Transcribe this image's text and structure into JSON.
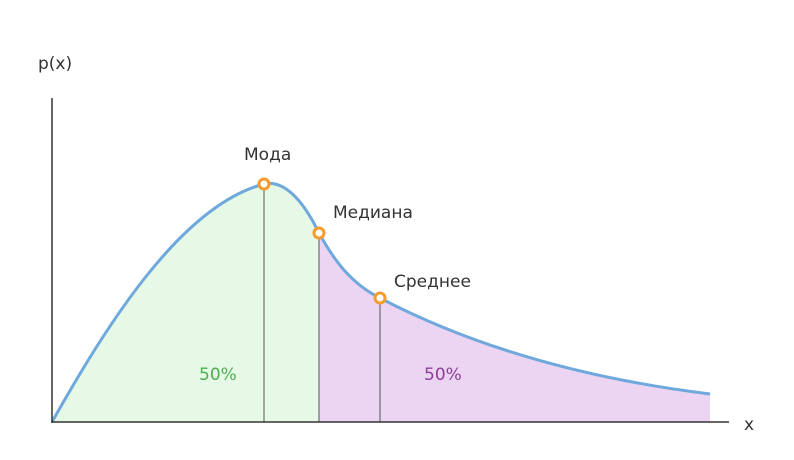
{
  "diagram": {
    "y_axis_label": "p(x)",
    "x_axis_label": "x",
    "points": [
      {
        "id": "mode",
        "label": "Мода"
      },
      {
        "id": "median",
        "label": "Медиана"
      },
      {
        "id": "mean",
        "label": "Среднее"
      }
    ],
    "regions": [
      {
        "id": "left",
        "label": "50%"
      },
      {
        "id": "right",
        "label": "50%"
      }
    ],
    "colors": {
      "curve": "#6fa8dc",
      "left_fill": "#e6f9e6",
      "left_text": "#4caf50",
      "right_fill": "#ecd5f2",
      "right_text": "#8e3f99",
      "marker": "#f39c2b",
      "axis": "#333333",
      "guide": "#555555"
    }
  }
}
